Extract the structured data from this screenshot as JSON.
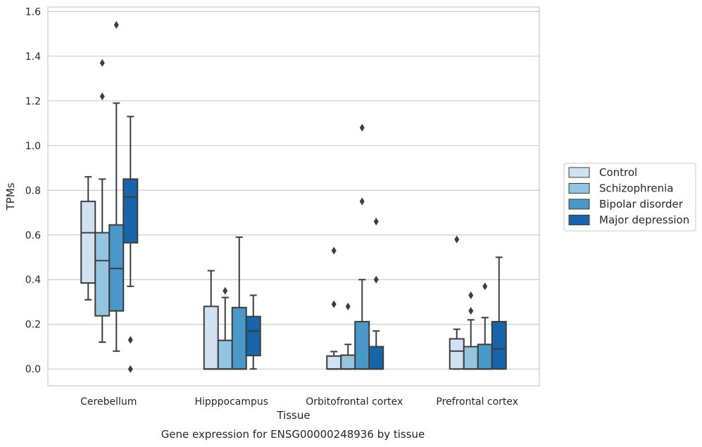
{
  "chart_data": {
    "type": "boxplot",
    "caption": "Gene expression for ENSG00000248936 by tissue",
    "xlabel": "Tissue",
    "ylabel": "TPMs",
    "ylim": [
      -0.075,
      1.62
    ],
    "yticks": [
      "0.0",
      "0.2",
      "0.4",
      "0.6",
      "0.8",
      "1.0",
      "1.2",
      "1.4",
      "1.6"
    ],
    "grid": "horizontal",
    "legend_position": "right",
    "categories": [
      "Cerebellum",
      "Hipppocampus",
      "Orbitofrontal cortex",
      "Prefrontal cortex"
    ],
    "series": [
      {
        "name": "Control",
        "color": "#d0e1f2",
        "boxes": [
          {
            "q1": 0.385,
            "median": 0.61,
            "q3": 0.75,
            "whisker_low": 0.31,
            "whisker_high": 0.86,
            "outliers": []
          },
          {
            "q1": 0.0,
            "median": 0.0,
            "q3": 0.28,
            "whisker_low": 0.0,
            "whisker_high": 0.44,
            "outliers": []
          },
          {
            "q1": 0.0,
            "median": 0.0,
            "q3": 0.058,
            "whisker_low": 0.0,
            "whisker_high": 0.078,
            "outliers": [
              0.53,
              0.29
            ]
          },
          {
            "q1": 0.0,
            "median": 0.08,
            "q3": 0.135,
            "whisker_low": 0.0,
            "whisker_high": 0.178,
            "outliers": [
              0.58
            ]
          }
        ]
      },
      {
        "name": "Schizophrenia",
        "color": "#94c4df",
        "boxes": [
          {
            "q1": 0.238,
            "median": 0.485,
            "q3": 0.61,
            "whisker_low": 0.12,
            "whisker_high": 0.85,
            "outliers": [
              1.37,
              1.22
            ]
          },
          {
            "q1": 0.0,
            "median": 0.0,
            "q3": 0.128,
            "whisker_low": 0.0,
            "whisker_high": 0.32,
            "outliers": [
              0.35
            ]
          },
          {
            "q1": 0.0,
            "median": 0.0,
            "q3": 0.062,
            "whisker_low": 0.0,
            "whisker_high": 0.11,
            "outliers": [
              0.28
            ]
          },
          {
            "q1": 0.0,
            "median": 0.0,
            "q3": 0.1,
            "whisker_low": 0.0,
            "whisker_high": 0.22,
            "outliers": [
              0.33,
              0.26
            ]
          }
        ]
      },
      {
        "name": "Bipolar disorder",
        "color": "#4a98c9",
        "boxes": [
          {
            "q1": 0.26,
            "median": 0.45,
            "q3": 0.645,
            "whisker_low": 0.08,
            "whisker_high": 1.19,
            "outliers": [
              1.54
            ]
          },
          {
            "q1": 0.0,
            "median": 0.0,
            "q3": 0.275,
            "whisker_low": 0.0,
            "whisker_high": 0.59,
            "outliers": []
          },
          {
            "q1": 0.0,
            "median": 0.0,
            "q3": 0.212,
            "whisker_low": 0.0,
            "whisker_high": 0.4,
            "outliers": [
              1.08,
              0.75
            ]
          },
          {
            "q1": 0.0,
            "median": 0.0,
            "q3": 0.11,
            "whisker_low": 0.0,
            "whisker_high": 0.23,
            "outliers": [
              0.37
            ]
          }
        ]
      },
      {
        "name": "Major depression",
        "color": "#1764ab",
        "boxes": [
          {
            "q1": 0.565,
            "median": 0.77,
            "q3": 0.85,
            "whisker_low": 0.37,
            "whisker_high": 1.13,
            "outliers": [
              0.13,
              0.0
            ]
          },
          {
            "q1": 0.06,
            "median": 0.17,
            "q3": 0.235,
            "whisker_low": 0.0,
            "whisker_high": 0.33,
            "outliers": []
          },
          {
            "q1": 0.0,
            "median": 0.0,
            "q3": 0.1,
            "whisker_low": 0.0,
            "whisker_high": 0.17,
            "outliers": [
              0.66,
              0.4
            ]
          },
          {
            "q1": 0.0,
            "median": 0.09,
            "q3": 0.212,
            "whisker_low": 0.0,
            "whisker_high": 0.5,
            "outliers": []
          }
        ]
      }
    ]
  }
}
